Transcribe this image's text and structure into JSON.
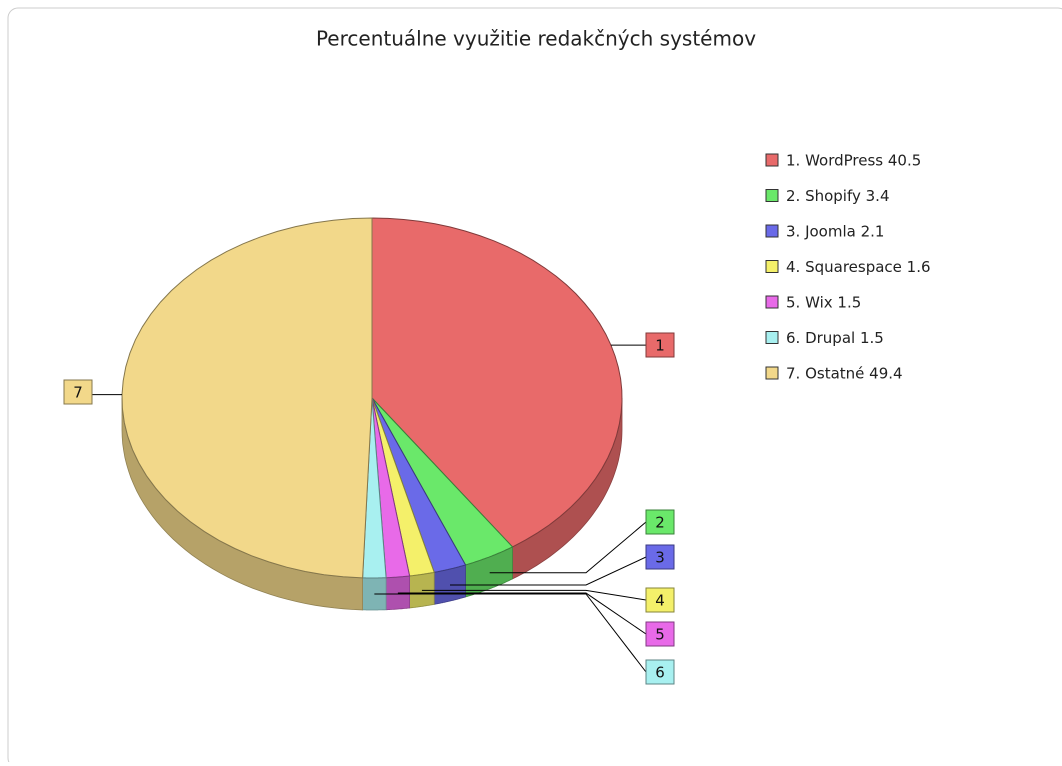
{
  "chart_data": {
    "type": "pie",
    "title": "Percentuálne využitie redakčných systémov",
    "categories": [
      "1. WordPress 40.5",
      "2. Shopify 3.4",
      "3. Joomla 2.1",
      "4. Squarespace 1.6",
      "5. Wix 1.5",
      "6. Drupal 1.5",
      "7. Ostatné 49.4"
    ],
    "labels": [
      "1",
      "2",
      "3",
      "4",
      "5",
      "6",
      "7"
    ],
    "values": [
      40.5,
      3.4,
      2.1,
      1.6,
      1.5,
      1.5,
      49.4
    ],
    "colors": [
      "#e86a6a",
      "#6ae86a",
      "#6a6ae8",
      "#f4f06a",
      "#e86ae8",
      "#a8f0f0",
      "#f2d88a"
    ],
    "legend": "right"
  }
}
